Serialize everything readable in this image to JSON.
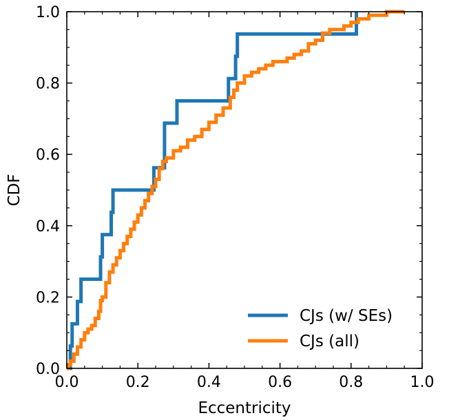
{
  "chart_data": {
    "type": "line",
    "title": "",
    "xlabel": "Eccentricity",
    "ylabel": "CDF",
    "xlim": [
      0.0,
      1.0
    ],
    "ylim": [
      0.0,
      1.0
    ],
    "grid": false,
    "legend_position": "bottom-right",
    "x_ticks": [
      "0.0",
      "0.2",
      "0.4",
      "0.6",
      "0.8",
      "1.0"
    ],
    "y_ticks": [
      "0.0",
      "0.2",
      "0.4",
      "0.6",
      "0.8",
      "1.0"
    ],
    "series": [
      {
        "name": "CJs (w/ SEs)",
        "color": "#1f77b4",
        "style": "step",
        "x": [
          0.0,
          0.01,
          0.015,
          0.03,
          0.04,
          0.095,
          0.1,
          0.125,
          0.13,
          0.245,
          0.275,
          0.31,
          0.455,
          0.475,
          0.48,
          0.49,
          0.81,
          0.815
        ],
        "y": [
          0.0,
          0.0625,
          0.125,
          0.1875,
          0.25,
          0.3125,
          0.375,
          0.4375,
          0.5,
          0.5625,
          0.6875,
          0.75,
          0.8125,
          0.875,
          0.9375,
          0.9375,
          0.9375,
          1.0
        ]
      },
      {
        "name": "CJs (all)",
        "color": "#ff7f0e",
        "style": "step",
        "x": [
          0.0,
          0.005,
          0.01,
          0.02,
          0.03,
          0.04,
          0.05,
          0.06,
          0.07,
          0.08,
          0.09,
          0.095,
          0.1,
          0.11,
          0.12,
          0.13,
          0.14,
          0.15,
          0.16,
          0.17,
          0.18,
          0.19,
          0.2,
          0.21,
          0.22,
          0.23,
          0.24,
          0.25,
          0.26,
          0.27,
          0.28,
          0.3,
          0.32,
          0.34,
          0.36,
          0.38,
          0.4,
          0.42,
          0.44,
          0.46,
          0.47,
          0.48,
          0.5,
          0.52,
          0.54,
          0.56,
          0.58,
          0.6,
          0.62,
          0.64,
          0.66,
          0.68,
          0.7,
          0.72,
          0.74,
          0.76,
          0.78,
          0.8,
          0.82,
          0.85,
          0.88,
          0.9,
          0.93,
          0.95
        ],
        "y": [
          0.0,
          0.01,
          0.02,
          0.04,
          0.06,
          0.08,
          0.1,
          0.11,
          0.12,
          0.14,
          0.16,
          0.19,
          0.2,
          0.24,
          0.27,
          0.29,
          0.31,
          0.33,
          0.35,
          0.37,
          0.39,
          0.41,
          0.43,
          0.45,
          0.47,
          0.49,
          0.51,
          0.53,
          0.56,
          0.58,
          0.59,
          0.61,
          0.62,
          0.64,
          0.65,
          0.67,
          0.69,
          0.71,
          0.73,
          0.76,
          0.78,
          0.8,
          0.82,
          0.83,
          0.84,
          0.85,
          0.86,
          0.86,
          0.87,
          0.88,
          0.89,
          0.91,
          0.92,
          0.94,
          0.95,
          0.95,
          0.96,
          0.97,
          0.98,
          0.99,
          0.99,
          1.0,
          1.0,
          1.0
        ]
      }
    ]
  }
}
